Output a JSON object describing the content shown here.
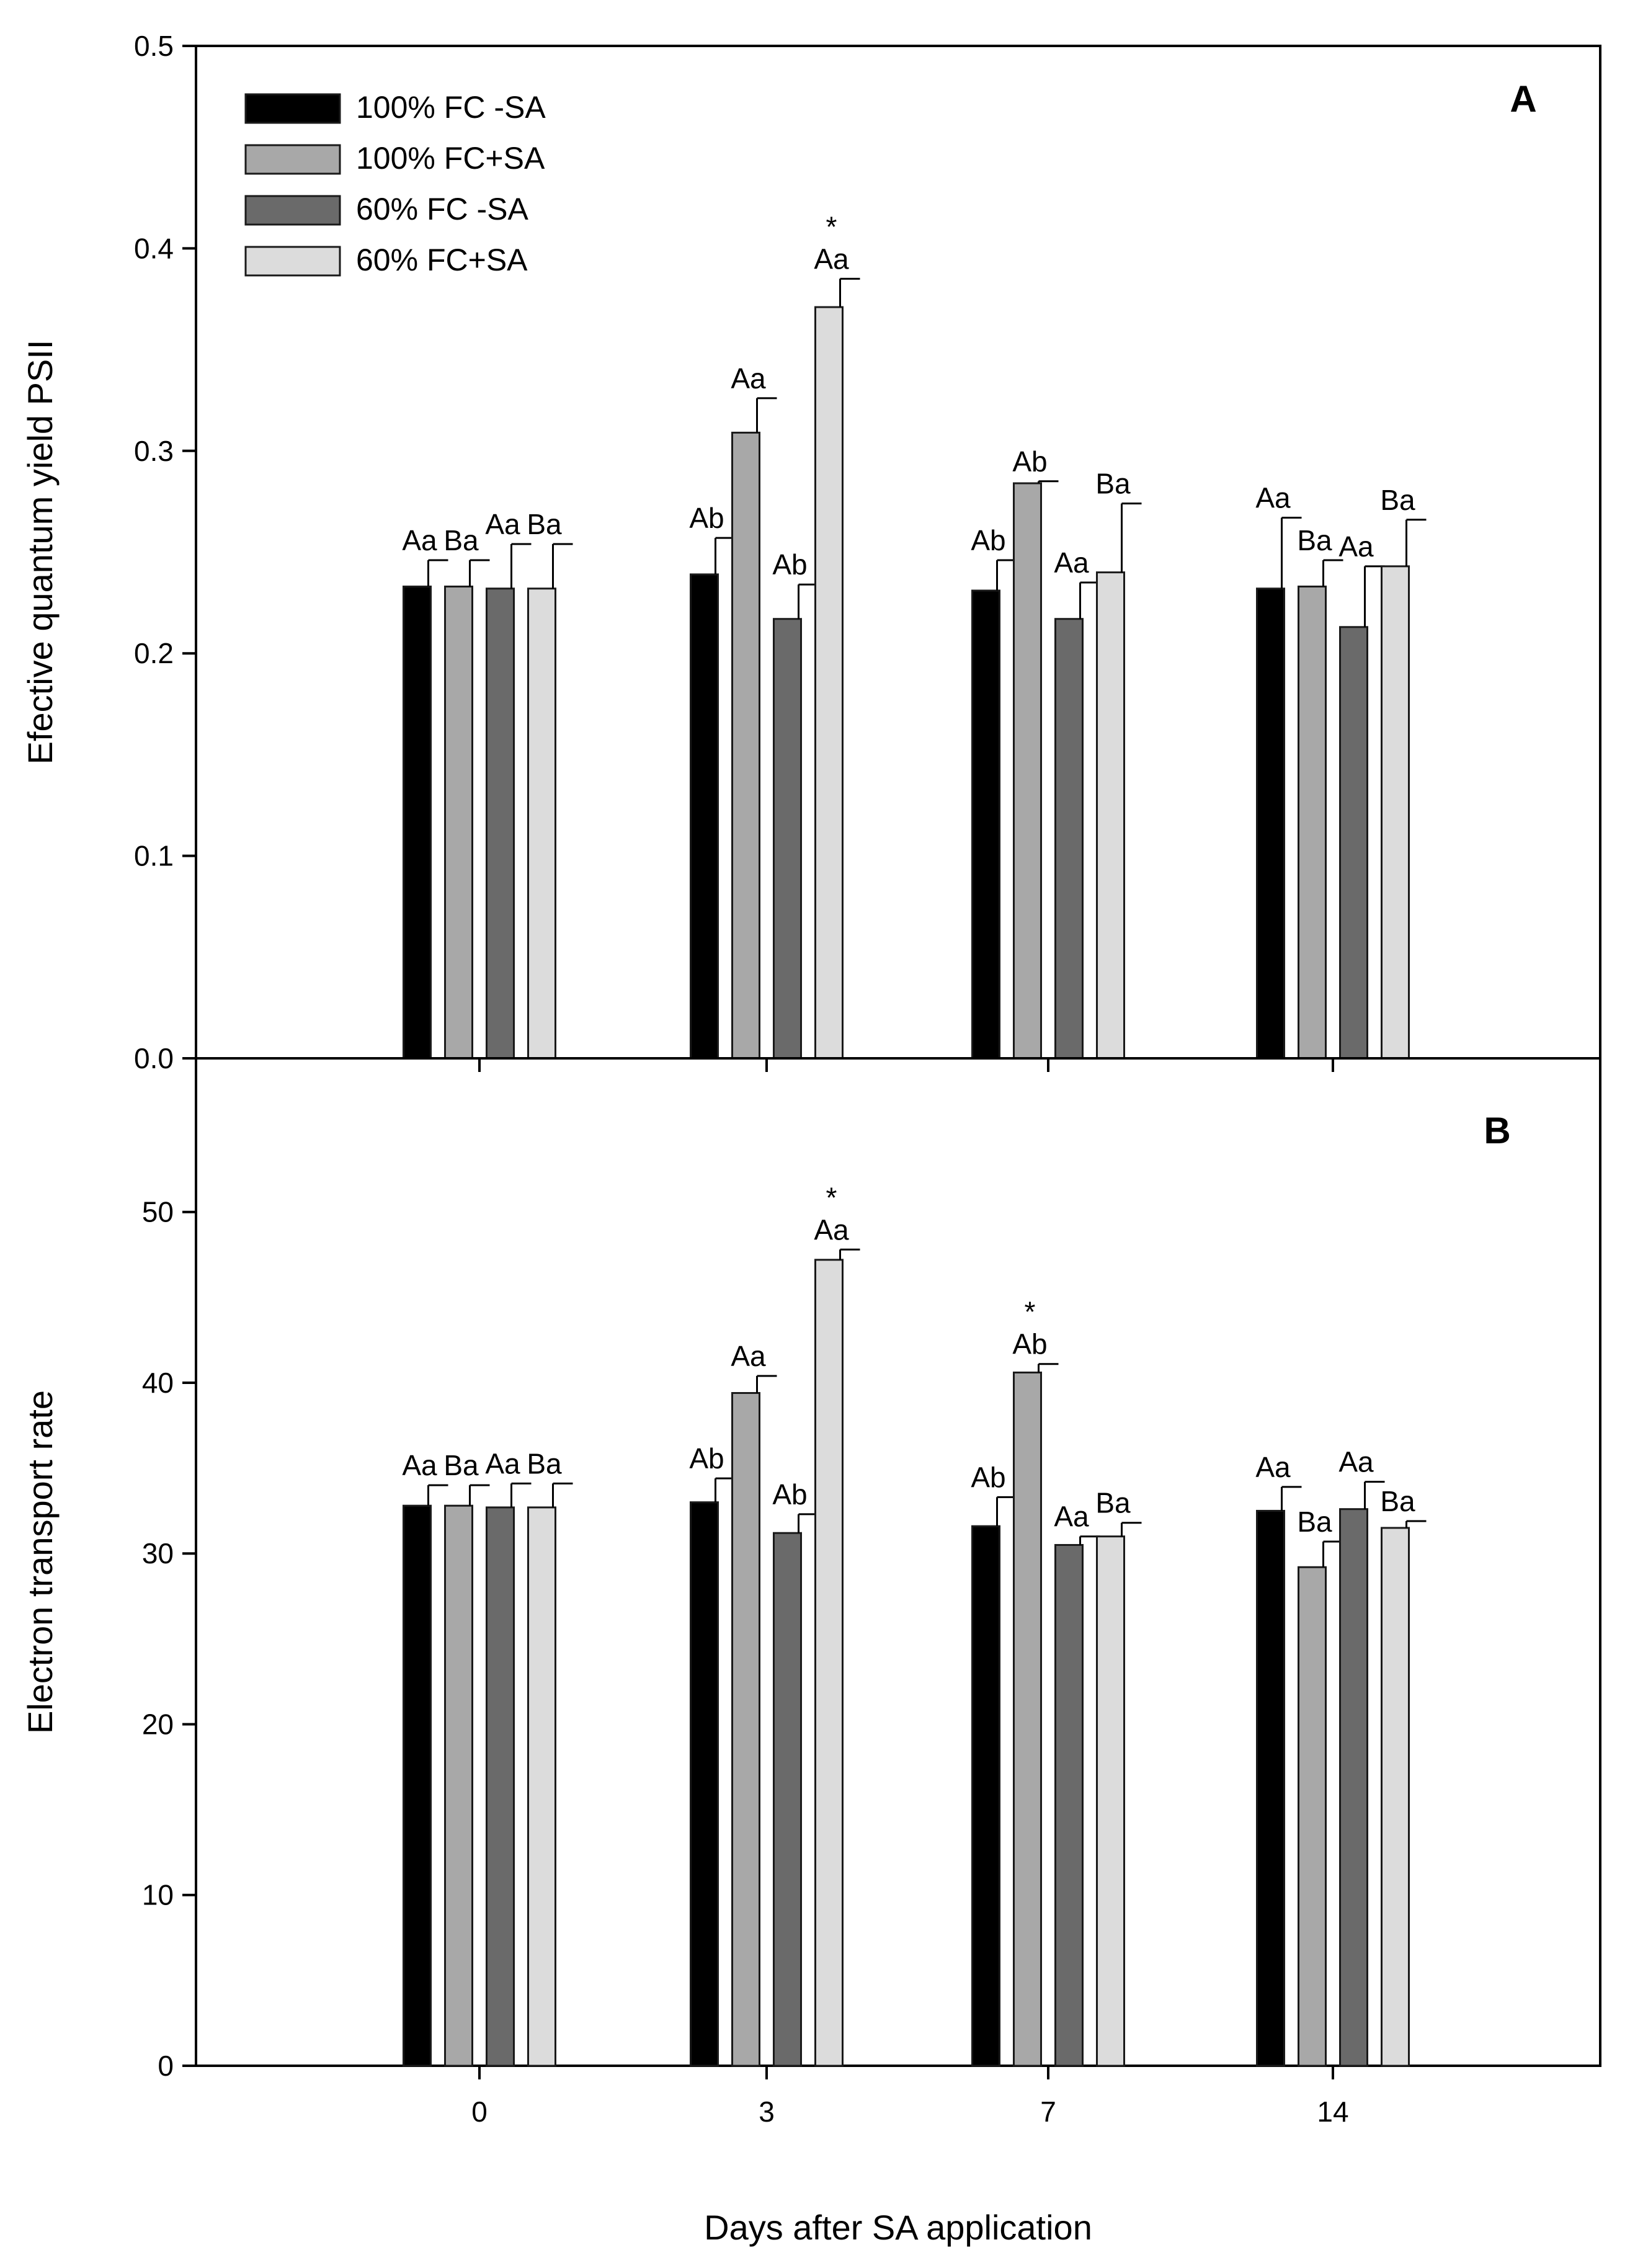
{
  "chart_data": [
    {
      "panel": "A",
      "type": "bar",
      "categories": [
        "0",
        "3",
        "7",
        "14"
      ],
      "xlabel": "Days after SA application",
      "ylabel": "Efective quantum yield PSII",
      "ylim": [
        0,
        0.5
      ],
      "yticks": [
        "0.0",
        "0.1",
        "0.2",
        "0.3",
        "0.4",
        "0.5"
      ],
      "yticks_values": [
        0,
        0.1,
        0.2,
        0.3,
        0.4,
        0.5
      ],
      "series": [
        {
          "name": "100% FC -SA",
          "values": [
            0.233,
            0.239,
            0.231,
            0.232
          ],
          "errors": [
            0.013,
            0.018,
            0.015,
            0.035
          ],
          "labels": [
            "Aa",
            "Ab",
            "Ab",
            "Aa"
          ],
          "stars": [
            "",
            "",
            "",
            ""
          ]
        },
        {
          "name": "100% FC+SA",
          "values": [
            0.233,
            0.309,
            0.284,
            0.233
          ],
          "errors": [
            0.013,
            0.017,
            0.001,
            0.013
          ],
          "labels": [
            "Ba",
            "Aa",
            "Ab",
            "Ba"
          ],
          "stars": [
            "",
            "",
            "",
            ""
          ]
        },
        {
          "name": "60% FC -SA",
          "values": [
            0.232,
            0.217,
            0.217,
            0.213
          ],
          "errors": [
            0.022,
            0.017,
            0.018,
            0.03
          ],
          "labels": [
            "Aa",
            "Ab",
            "Aa",
            "Aa"
          ],
          "stars": [
            "",
            "",
            "",
            ""
          ]
        },
        {
          "name": "60% FC+SA",
          "values": [
            0.232,
            0.371,
            0.24,
            0.243
          ],
          "errors": [
            0.022,
            0.014,
            0.034,
            0.023
          ],
          "labels": [
            "Ba",
            "Aa",
            "Ba",
            "Ba"
          ],
          "stars": [
            "",
            "*",
            "",
            ""
          ]
        }
      ]
    },
    {
      "panel": "B",
      "type": "bar",
      "categories": [
        "0",
        "3",
        "7",
        "14"
      ],
      "xlabel": "Days after SA application",
      "ylabel": "Electron transport rate",
      "ylim": [
        0,
        59
      ],
      "yticks": [
        "0",
        "10",
        "20",
        "30",
        "40",
        "50"
      ],
      "yticks_values": [
        0,
        10,
        20,
        30,
        40,
        50
      ],
      "series": [
        {
          "name": "100% FC -SA",
          "values": [
            32.8,
            33.0,
            31.6,
            32.5
          ],
          "errors": [
            1.2,
            1.4,
            1.7,
            1.4
          ],
          "labels": [
            "Aa",
            "Ab",
            "Ab",
            "Aa"
          ],
          "stars": [
            "",
            "",
            "",
            ""
          ]
        },
        {
          "name": "100% FC+SA",
          "values": [
            32.8,
            39.4,
            40.6,
            29.2
          ],
          "errors": [
            1.2,
            1.0,
            0.5,
            1.5
          ],
          "labels": [
            "Ba",
            "Aa",
            "Ab",
            "Ba"
          ],
          "stars": [
            "",
            "",
            "*",
            ""
          ]
        },
        {
          "name": "60% FC -SA",
          "values": [
            32.7,
            31.2,
            30.5,
            32.6
          ],
          "errors": [
            1.4,
            1.1,
            0.5,
            1.6
          ],
          "labels": [
            "Aa",
            "Ab",
            "Aa",
            "Aa"
          ],
          "stars": [
            "",
            "",
            "",
            ""
          ]
        },
        {
          "name": "60% FC+SA",
          "values": [
            32.7,
            47.2,
            31.0,
            31.5
          ],
          "errors": [
            1.4,
            0.6,
            0.8,
            0.4
          ],
          "labels": [
            "Ba",
            "Aa",
            "Ba",
            "Ba"
          ],
          "stars": [
            "",
            "*",
            "",
            ""
          ]
        }
      ]
    }
  ],
  "legend": {
    "colors": [
      "#000000",
      "#a8a8a8",
      "#6a6a6a",
      "#dcdcdc"
    ]
  }
}
